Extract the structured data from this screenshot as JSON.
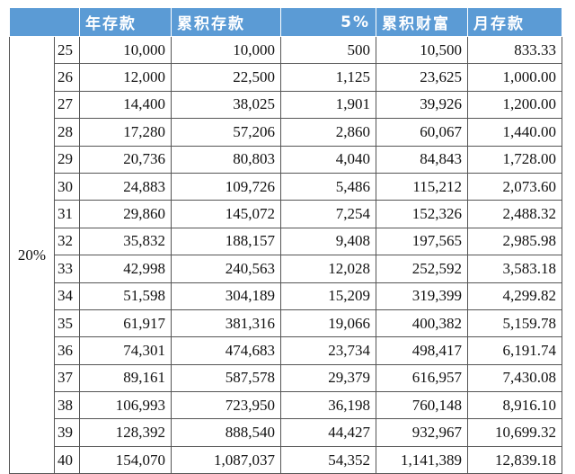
{
  "table": {
    "rate": "20%",
    "header": [
      "年存款",
      "累积存款",
      "5%",
      "累积财富",
      "月存款"
    ],
    "rows": [
      [
        "25",
        "10,000",
        "10,000",
        "500",
        "10,500",
        "833.33"
      ],
      [
        "26",
        "12,000",
        "22,500",
        "1,125",
        "23,625",
        "1,000.00"
      ],
      [
        "27",
        "14,400",
        "38,025",
        "1,901",
        "39,926",
        "1,200.00"
      ],
      [
        "28",
        "17,280",
        "57,206",
        "2,860",
        "60,067",
        "1,440.00"
      ],
      [
        "29",
        "20,736",
        "80,803",
        "4,040",
        "84,843",
        "1,728.00"
      ],
      [
        "30",
        "24,883",
        "109,726",
        "5,486",
        "115,212",
        "2,073.60"
      ],
      [
        "31",
        "29,860",
        "145,072",
        "7,254",
        "152,326",
        "2,488.32"
      ],
      [
        "32",
        "35,832",
        "188,157",
        "9,408",
        "197,565",
        "2,985.98"
      ],
      [
        "33",
        "42,998",
        "240,563",
        "12,028",
        "252,592",
        "3,583.18"
      ],
      [
        "34",
        "51,598",
        "304,189",
        "15,209",
        "319,399",
        "4,299.82"
      ],
      [
        "35",
        "61,917",
        "381,316",
        "19,066",
        "400,382",
        "5,159.78"
      ],
      [
        "36",
        "74,301",
        "474,683",
        "23,734",
        "498,417",
        "6,191.74"
      ],
      [
        "37",
        "89,161",
        "587,578",
        "29,379",
        "616,957",
        "7,430.08"
      ],
      [
        "38",
        "106,993",
        "723,950",
        "36,198",
        "760,148",
        "8,916.10"
      ],
      [
        "39",
        "128,392",
        "888,540",
        "44,427",
        "932,967",
        "10,699.32"
      ],
      [
        "40",
        "154,070",
        "1,087,037",
        "54,352",
        "1,141,389",
        "12,839.18"
      ]
    ]
  }
}
